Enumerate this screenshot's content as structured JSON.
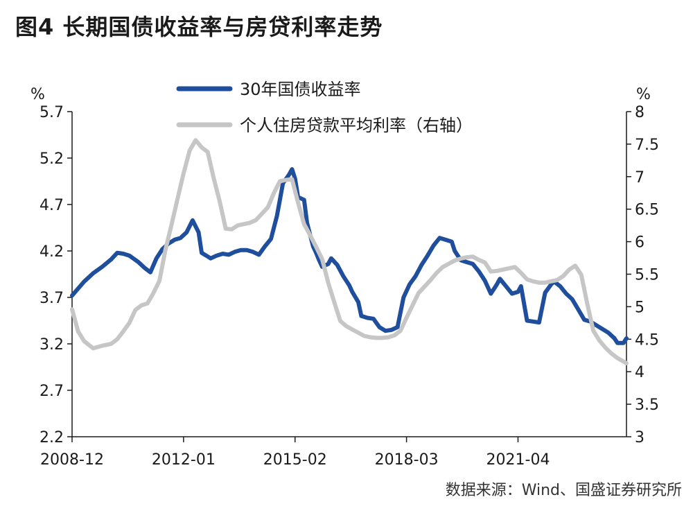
{
  "figure": {
    "title": "图4  长期国债收益率与房贷利率走势",
    "source": "数据来源：Wind、国盛证券研究所"
  },
  "chart_data": {
    "type": "line",
    "left_unit": "%",
    "right_unit": "%",
    "x_ticks": [
      {
        "label": "2008-12",
        "x": 0
      },
      {
        "label": "2012-01",
        "x": 37
      },
      {
        "label": "2015-02",
        "x": 74
      },
      {
        "label": "2018-03",
        "x": 111
      },
      {
        "label": "2021-04",
        "x": 148
      }
    ],
    "x_range": [
      0,
      184
    ],
    "left_axis": {
      "range": [
        2.2,
        5.7
      ],
      "ticks": [
        "2.2",
        "2.7",
        "3.2",
        "3.7",
        "4.2",
        "4.7",
        "5.2",
        "5.7"
      ]
    },
    "right_axis": {
      "range": [
        3,
        8
      ],
      "ticks": [
        "3",
        "3.5",
        "4",
        "4.5",
        "5",
        "5.5",
        "6",
        "6.5",
        "7",
        "7.5",
        "8"
      ]
    },
    "series": [
      {
        "name": "30年国债收益率",
        "axis": "left",
        "color": "#1f4e9c",
        "points": [
          [
            0,
            3.72
          ],
          [
            4,
            3.87
          ],
          [
            7,
            3.96
          ],
          [
            10,
            4.03
          ],
          [
            13,
            4.11
          ],
          [
            15,
            4.18
          ],
          [
            17,
            4.17
          ],
          [
            19,
            4.15
          ],
          [
            22,
            4.08
          ],
          [
            24,
            4.02
          ],
          [
            26,
            3.97
          ],
          [
            28,
            4.12
          ],
          [
            30,
            4.22
          ],
          [
            32,
            4.28
          ],
          [
            34,
            4.32
          ],
          [
            36,
            4.34
          ],
          [
            38,
            4.4
          ],
          [
            40,
            4.53
          ],
          [
            42,
            4.4
          ],
          [
            43,
            4.18
          ],
          [
            45,
            4.14
          ],
          [
            46,
            4.12
          ],
          [
            48,
            4.15
          ],
          [
            50,
            4.17
          ],
          [
            52,
            4.16
          ],
          [
            54,
            4.19
          ],
          [
            56,
            4.21
          ],
          [
            58,
            4.21
          ],
          [
            60,
            4.19
          ],
          [
            62,
            4.16
          ],
          [
            64,
            4.25
          ],
          [
            66,
            4.33
          ],
          [
            68,
            4.58
          ],
          [
            70,
            4.93
          ],
          [
            72,
            5.02
          ],
          [
            73,
            5.08
          ],
          [
            74,
            4.98
          ],
          [
            75,
            4.78
          ],
          [
            77,
            4.75
          ],
          [
            78,
            4.5
          ],
          [
            80,
            4.25
          ],
          [
            81,
            4.18
          ],
          [
            82,
            4.1
          ],
          [
            83,
            4.03
          ],
          [
            85,
            4.06
          ],
          [
            86,
            4.12
          ],
          [
            88,
            4.05
          ],
          [
            90,
            3.93
          ],
          [
            92,
            3.83
          ],
          [
            93,
            3.76
          ],
          [
            95,
            3.65
          ],
          [
            96,
            3.5
          ],
          [
            98,
            3.48
          ],
          [
            100,
            3.47
          ],
          [
            102,
            3.38
          ],
          [
            104,
            3.34
          ],
          [
            106,
            3.35
          ],
          [
            108,
            3.38
          ],
          [
            110,
            3.7
          ],
          [
            112,
            3.84
          ],
          [
            114,
            3.93
          ],
          [
            116,
            4.05
          ],
          [
            118,
            4.15
          ],
          [
            120,
            4.26
          ],
          [
            122,
            4.34
          ],
          [
            124,
            4.32
          ],
          [
            126,
            4.3
          ],
          [
            127,
            4.2
          ],
          [
            129,
            4.1
          ],
          [
            131,
            4.08
          ],
          [
            133,
            4.06
          ],
          [
            135,
            3.98
          ],
          [
            137,
            3.88
          ],
          [
            139,
            3.74
          ],
          [
            141,
            3.84
          ],
          [
            142,
            3.9
          ],
          [
            144,
            3.82
          ],
          [
            146,
            3.74
          ],
          [
            148,
            3.76
          ],
          [
            149,
            3.82
          ],
          [
            151,
            3.45
          ],
          [
            153,
            3.44
          ],
          [
            155,
            3.43
          ],
          [
            157,
            3.75
          ],
          [
            159,
            3.84
          ],
          [
            160,
            3.87
          ],
          [
            162,
            3.82
          ],
          [
            164,
            3.74
          ],
          [
            166,
            3.68
          ],
          [
            168,
            3.57
          ],
          [
            170,
            3.46
          ],
          [
            172,
            3.44
          ],
          [
            174,
            3.4
          ],
          [
            176,
            3.36
          ],
          [
            178,
            3.32
          ],
          [
            180,
            3.26
          ],
          [
            181,
            3.21
          ],
          [
            183,
            3.21
          ],
          [
            184,
            3.26
          ]
        ]
      },
      {
        "name": "个人住房贷款平均利率（右轴）",
        "axis": "right",
        "color": "#c6c6c6",
        "points": [
          [
            0,
            4.96
          ],
          [
            2,
            4.62
          ],
          [
            4,
            4.47
          ],
          [
            7,
            4.36
          ],
          [
            10,
            4.4
          ],
          [
            13,
            4.43
          ],
          [
            15,
            4.5
          ],
          [
            17,
            4.62
          ],
          [
            19,
            4.75
          ],
          [
            21,
            4.95
          ],
          [
            23,
            5.02
          ],
          [
            25,
            5.05
          ],
          [
            27,
            5.21
          ],
          [
            29,
            5.4
          ],
          [
            31,
            5.88
          ],
          [
            33,
            6.26
          ],
          [
            35,
            6.66
          ],
          [
            37,
            7.05
          ],
          [
            39,
            7.4
          ],
          [
            41,
            7.56
          ],
          [
            43,
            7.45
          ],
          [
            45,
            7.38
          ],
          [
            47,
            6.98
          ],
          [
            49,
            6.62
          ],
          [
            51,
            6.2
          ],
          [
            53,
            6.19
          ],
          [
            55,
            6.25
          ],
          [
            57,
            6.27
          ],
          [
            59,
            6.29
          ],
          [
            61,
            6.33
          ],
          [
            63,
            6.43
          ],
          [
            65,
            6.53
          ],
          [
            67,
            6.75
          ],
          [
            69,
            6.93
          ],
          [
            71,
            6.95
          ],
          [
            73,
            6.96
          ],
          [
            75,
            6.6
          ],
          [
            77,
            6.27
          ],
          [
            79,
            6.1
          ],
          [
            81,
            5.92
          ],
          [
            83,
            5.73
          ],
          [
            85,
            5.37
          ],
          [
            87,
            5.07
          ],
          [
            89,
            4.78
          ],
          [
            91,
            4.7
          ],
          [
            93,
            4.65
          ],
          [
            95,
            4.6
          ],
          [
            97,
            4.55
          ],
          [
            99,
            4.53
          ],
          [
            101,
            4.52
          ],
          [
            103,
            4.52
          ],
          [
            105,
            4.53
          ],
          [
            107,
            4.56
          ],
          [
            109,
            4.63
          ],
          [
            111,
            4.83
          ],
          [
            113,
            5.02
          ],
          [
            115,
            5.21
          ],
          [
            117,
            5.31
          ],
          [
            119,
            5.41
          ],
          [
            121,
            5.52
          ],
          [
            123,
            5.61
          ],
          [
            125,
            5.66
          ],
          [
            127,
            5.71
          ],
          [
            129,
            5.74
          ],
          [
            131,
            5.76
          ],
          [
            133,
            5.77
          ],
          [
            135,
            5.72
          ],
          [
            137,
            5.68
          ],
          [
            139,
            5.54
          ],
          [
            141,
            5.55
          ],
          [
            143,
            5.57
          ],
          [
            145,
            5.59
          ],
          [
            147,
            5.61
          ],
          [
            149,
            5.52
          ],
          [
            151,
            5.42
          ],
          [
            153,
            5.39
          ],
          [
            155,
            5.37
          ],
          [
            157,
            5.37
          ],
          [
            159,
            5.39
          ],
          [
            161,
            5.41
          ],
          [
            163,
            5.47
          ],
          [
            165,
            5.57
          ],
          [
            167,
            5.63
          ],
          [
            169,
            5.49
          ],
          [
            171,
            5.04
          ],
          [
            173,
            4.63
          ],
          [
            175,
            4.48
          ],
          [
            177,
            4.37
          ],
          [
            179,
            4.28
          ],
          [
            181,
            4.21
          ],
          [
            184,
            4.13
          ]
        ]
      }
    ]
  }
}
